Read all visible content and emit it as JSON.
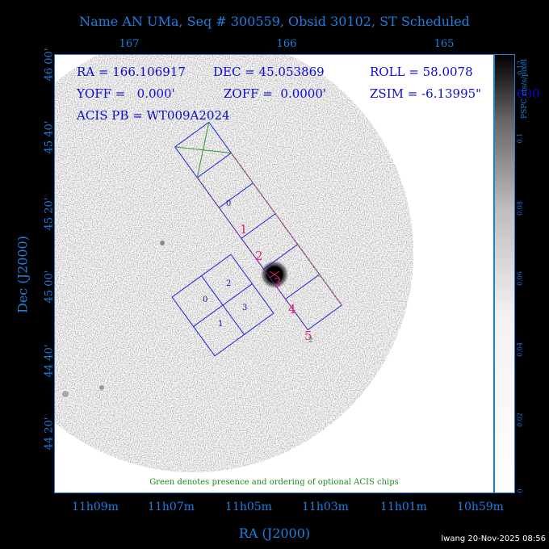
{
  "header": {
    "title": "Name AN UMa, Seq # 300559, Obsid 30102, ST Scheduled"
  },
  "axes": {
    "ra_top_ticks": [
      "167",
      "166",
      "165"
    ],
    "ra_bottom_ticks": [
      "11h09m",
      "11h07m",
      "11h05m",
      "11h03m",
      "11h01m",
      "10h59m"
    ],
    "dec_ticks": [
      "46 00'",
      "45 40'",
      "45 20'",
      "45 00'",
      "44 40'",
      "44 20'"
    ],
    "x_title": "RA (J2000)",
    "y_title": "Dec (J2000)"
  },
  "info": {
    "ra": "RA = 166.106917",
    "dec": "DEC = 45.053869",
    "roll": "ROLL = 58.0078",
    "yoff": "YOFF =   0.000'",
    "zoff": "ZOFF =  0.0000'",
    "zsim": "ZSIM = -6.13995\"",
    "zsim_overflow": "600",
    "acis": "ACIS PB = WT009A2024"
  },
  "chips": {
    "aciss_labels": [
      "0",
      "1",
      "2",
      "3",
      "4",
      "5"
    ],
    "acisi_labels": [
      "0",
      "1",
      "2",
      "3"
    ]
  },
  "note": "Green denotes presence and ordering of optional ACIS chips",
  "colorbar": {
    "ticks": [
      "0",
      "0.02",
      "0.04",
      "0.06",
      "0.08",
      "0.1",
      "0.12"
    ],
    "unit": "PSPC cts/s/pixel"
  },
  "footer": {
    "stamp": "lwang 20-Nov-2025 08:56"
  },
  "colors": {
    "axis_text": "#1e7fe0",
    "info_text": "#0a0ad0",
    "acis_s_numbers": "#e0207a",
    "chip_outline": "#2020e0",
    "note_green": "#1f8a1f"
  }
}
